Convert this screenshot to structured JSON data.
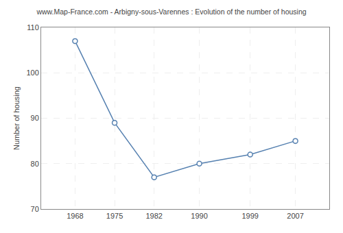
{
  "chart_data": {
    "type": "line",
    "title": "www.Map-France.com - Arbigny-sous-Varennes : Evolution of the number of housing",
    "x": [
      1968,
      1975,
      1982,
      1990,
      1999,
      2007
    ],
    "values": [
      107,
      89,
      77,
      80,
      82,
      85
    ],
    "ylabel": "Number of housing",
    "xlim": [
      1962,
      2013
    ],
    "xticks": [
      1968,
      1975,
      1982,
      1990,
      1999,
      2007
    ],
    "ylim": [
      70,
      110
    ],
    "yticks": [
      70,
      80,
      90,
      100,
      110
    ],
    "color": "#5580b0",
    "marker": "circle",
    "line_style": "solid",
    "grid": true
  }
}
